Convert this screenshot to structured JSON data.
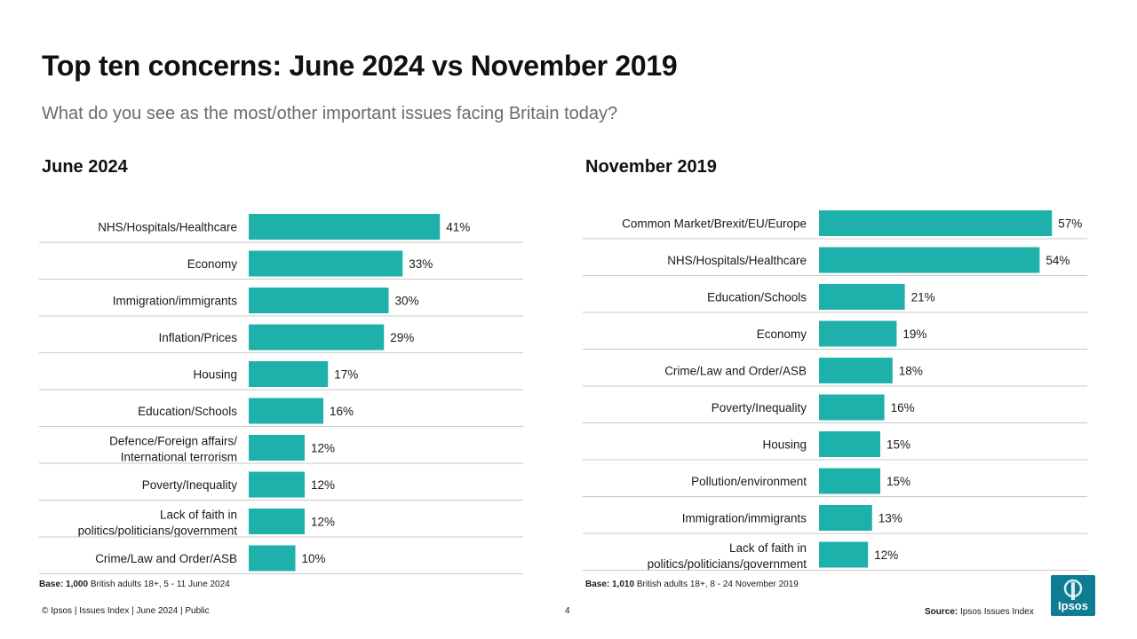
{
  "title": "Top ten concerns: June 2024 vs November 2019",
  "subtitle": "What do you see as the most/other important issues facing Britain today?",
  "colors": {
    "bar": "#1eb0aa",
    "divider": "#c8c8c8",
    "logo": "#0e7d93"
  },
  "chart_data": [
    {
      "type": "bar",
      "orientation": "horizontal",
      "title": "June 2024",
      "categories": [
        "NHS/Hospitals/Healthcare",
        "Economy",
        "Immigration/immigrants",
        "Inflation/Prices",
        "Housing",
        "Education/Schools",
        "Defence/Foreign affairs/\nInternational terrorism",
        "Poverty/Inequality",
        "Lack of faith in\npolitics/politicians/government",
        "Crime/Law and Order/ASB"
      ],
      "values": [
        41,
        33,
        30,
        29,
        17,
        16,
        12,
        12,
        12,
        10
      ],
      "value_labels": [
        "41%",
        "33%",
        "30%",
        "29%",
        "17%",
        "16%",
        "12%",
        "12%",
        "12%",
        "10%"
      ],
      "xlim": [
        0,
        100
      ]
    },
    {
      "type": "bar",
      "orientation": "horizontal",
      "title": "November 2019",
      "categories": [
        "Common Market/Brexit/EU/Europe",
        "NHS/Hospitals/Healthcare",
        "Education/Schools",
        "Economy",
        "Crime/Law and Order/ASB",
        "Poverty/Inequality",
        "Housing",
        "Pollution/environment",
        "Immigration/immigrants",
        "Lack of faith in\npolitics/politicians/government"
      ],
      "values": [
        57,
        54,
        21,
        19,
        18,
        16,
        15,
        15,
        13,
        12
      ],
      "value_labels": [
        "57%",
        "54%",
        "21%",
        "19%",
        "18%",
        "16%",
        "15%",
        "15%",
        "13%",
        "12%"
      ],
      "xlim": [
        0,
        100
      ]
    }
  ],
  "base_notes": [
    {
      "bold": "Base: 1,000",
      "rest": " British adults 18+, 5 - 11 June 2024"
    },
    {
      "bold": "Base: 1,010",
      "rest": " British adults 18+, 8 - 24 November 2019"
    }
  ],
  "footer": "© Ipsos | Issues Index | June 2024 | Public",
  "page_number": "4",
  "source": {
    "bold": "Source:",
    "rest": " Ipsos Issues Index"
  },
  "logo_text": "Ipsos"
}
